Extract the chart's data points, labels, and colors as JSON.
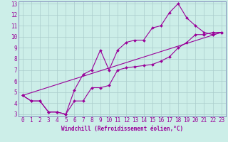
{
  "xlabel": "Windchill (Refroidissement éolien,°C)",
  "bg_color": "#cceee8",
  "line_color": "#990099",
  "grid_color": "#aacccc",
  "axis_color": "#6666aa",
  "xlim": [
    -0.5,
    23.5
  ],
  "ylim": [
    2.8,
    13.2
  ],
  "xticks": [
    0,
    1,
    2,
    3,
    4,
    5,
    6,
    7,
    8,
    9,
    10,
    11,
    12,
    13,
    14,
    15,
    16,
    17,
    18,
    19,
    20,
    21,
    22,
    23
  ],
  "yticks": [
    3,
    4,
    5,
    6,
    7,
    8,
    9,
    10,
    11,
    12,
    13
  ],
  "series1_x": [
    0,
    1,
    2,
    3,
    4,
    5,
    6,
    7,
    8,
    9,
    10,
    11,
    12,
    13,
    14,
    15,
    16,
    17,
    18,
    19,
    20,
    21,
    22,
    23
  ],
  "series1_y": [
    4.7,
    4.2,
    4.2,
    3.2,
    3.2,
    3.0,
    5.2,
    6.6,
    7.0,
    8.8,
    7.0,
    8.8,
    9.5,
    9.7,
    9.7,
    10.8,
    11.0,
    12.2,
    13.0,
    11.7,
    11.0,
    10.4,
    10.2,
    10.4
  ],
  "series2_x": [
    0,
    1,
    2,
    3,
    4,
    5,
    6,
    7,
    8,
    9,
    10,
    11,
    12,
    13,
    14,
    15,
    16,
    17,
    18,
    19,
    20,
    21,
    22,
    23
  ],
  "series2_y": [
    4.7,
    4.2,
    4.2,
    3.2,
    3.2,
    3.0,
    4.2,
    4.2,
    5.4,
    5.4,
    5.6,
    7.0,
    7.2,
    7.3,
    7.4,
    7.5,
    7.8,
    8.2,
    9.0,
    9.5,
    10.2,
    10.2,
    10.4,
    10.4
  ],
  "series3_x": [
    0,
    23
  ],
  "series3_y": [
    4.7,
    10.4
  ],
  "markersize": 2.0,
  "linewidth": 0.8,
  "tick_labelsize": 5.5,
  "xlabel_fontsize": 5.5
}
